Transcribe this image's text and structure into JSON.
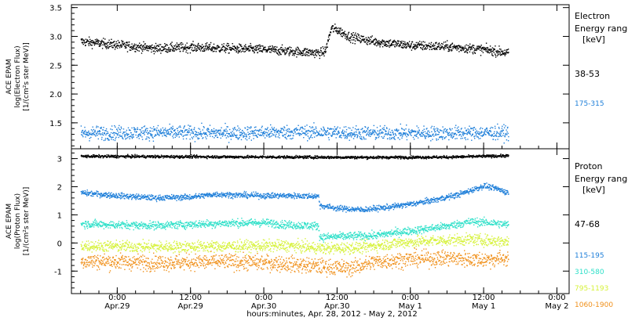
{
  "colors": {
    "black": "#000000",
    "blue": "#1f7fd9",
    "cyan": "#2fe0c9",
    "yellow": "#d6f23a",
    "orange": "#f0901a"
  },
  "x_axis": {
    "caption": "hours:minutes, Apr. 28, 2012 - May  2, 2012",
    "ticks": [
      {
        "time": "0:00",
        "date": "Apr.29",
        "hour": 24
      },
      {
        "time": "12:00",
        "date": "Apr.29",
        "hour": 36
      },
      {
        "time": "0:00",
        "date": "Apr.30",
        "hour": 48
      },
      {
        "time": "12:00",
        "date": "Apr.30",
        "hour": 60
      },
      {
        "time": "0:00",
        "date": "May 1",
        "hour": 72
      },
      {
        "time": "12:00",
        "date": "May 1",
        "hour": 84
      },
      {
        "time": "0:00",
        "date": "May 2",
        "hour": 96
      }
    ],
    "range_hours": [
      16.5,
      98
    ]
  },
  "chart_data": [
    {
      "type": "scatter",
      "name": "electron-panel",
      "ylabel_lines": [
        "ACE EPAM",
        "log(Electron Flux)",
        "[1/(cm²s ster MeV)]"
      ],
      "ylim": [
        1.05,
        3.55
      ],
      "yticks": [
        1.5,
        2.0,
        2.5,
        3.0,
        3.5
      ],
      "ytick_labels": [
        "1.5",
        "2.0",
        "2.5",
        "3.0",
        "3.5"
      ],
      "legend": {
        "title_lines": [
          "Electron",
          "Energy range",
          "[keV]"
        ],
        "entries": [
          "38-53",
          "175-315"
        ]
      },
      "series": [
        {
          "name": "38-53",
          "color": "black",
          "x_hours": [
            18,
            24,
            30,
            36,
            42,
            48,
            54,
            57,
            58,
            59,
            60,
            62,
            66,
            72,
            78,
            84,
            88
          ],
          "y": [
            2.92,
            2.86,
            2.8,
            2.82,
            2.8,
            2.78,
            2.74,
            2.72,
            2.75,
            3.15,
            3.12,
            3.0,
            2.92,
            2.85,
            2.83,
            2.78,
            2.72
          ],
          "noise": 0.04
        },
        {
          "name": "175-315",
          "color": "blue",
          "x_hours": [
            18,
            30,
            42,
            54,
            66,
            78,
            88
          ],
          "y": [
            1.33,
            1.34,
            1.33,
            1.35,
            1.33,
            1.33,
            1.34
          ],
          "noise": 0.06
        }
      ]
    },
    {
      "type": "scatter",
      "name": "proton-panel",
      "ylabel_lines": [
        "ACE EPAM",
        "log(Proton Flux)",
        "[1/(cm²s ster MeV)]"
      ],
      "ylim": [
        -1.8,
        3.35
      ],
      "yticks": [
        -1,
        0,
        1,
        2,
        3
      ],
      "ytick_labels": [
        "-1",
        "0",
        "1",
        "2",
        "3"
      ],
      "legend": {
        "title_lines": [
          "Proton",
          "Energy range",
          "[keV]"
        ],
        "entries": [
          "47-68",
          "115-195",
          "310-580",
          "795-1193",
          "1060-1900"
        ]
      },
      "series": [
        {
          "name": "47-68",
          "color": "black",
          "x_hours": [
            18,
            30,
            42,
            54,
            66,
            78,
            84,
            88
          ],
          "y": [
            3.1,
            3.09,
            3.08,
            3.07,
            3.06,
            3.07,
            3.1,
            3.12
          ],
          "noise": 0.025
        },
        {
          "name": "115-195",
          "color": "blue",
          "x_hours": [
            18,
            24,
            30,
            36,
            40,
            44,
            48,
            52,
            56.9,
            57.1,
            60,
            64,
            68,
            72,
            76,
            80,
            84,
            86,
            88
          ],
          "y": [
            1.8,
            1.7,
            1.62,
            1.65,
            1.75,
            1.72,
            1.7,
            1.7,
            1.68,
            1.35,
            1.25,
            1.2,
            1.28,
            1.4,
            1.55,
            1.75,
            2.05,
            1.95,
            1.8
          ],
          "noise": 0.05
        },
        {
          "name": "310-580",
          "color": "cyan",
          "x_hours": [
            18,
            24,
            30,
            36,
            42,
            48,
            52,
            56.9,
            57.1,
            62,
            66,
            70,
            74,
            78,
            82,
            86,
            88
          ],
          "y": [
            0.7,
            0.66,
            0.64,
            0.68,
            0.72,
            0.74,
            0.66,
            0.62,
            0.22,
            0.26,
            0.28,
            0.4,
            0.5,
            0.62,
            0.78,
            0.72,
            0.66
          ],
          "noise": 0.07
        },
        {
          "name": "795-1193",
          "color": "yellow",
          "x_hours": [
            18,
            30,
            42,
            52,
            58,
            64,
            70,
            76,
            82,
            88
          ],
          "y": [
            -0.08,
            -0.12,
            -0.1,
            -0.08,
            -0.18,
            -0.14,
            0.02,
            0.1,
            0.14,
            0.06
          ],
          "noise": 0.1
        },
        {
          "name": "1060-1900",
          "color": "orange",
          "x_hours": [
            18,
            30,
            42,
            50,
            56,
            62,
            66,
            72,
            78,
            84,
            88
          ],
          "y": [
            -0.62,
            -0.68,
            -0.65,
            -0.7,
            -0.8,
            -0.88,
            -0.66,
            -0.55,
            -0.52,
            -0.58,
            -0.52
          ],
          "noise": 0.14
        }
      ]
    }
  ]
}
